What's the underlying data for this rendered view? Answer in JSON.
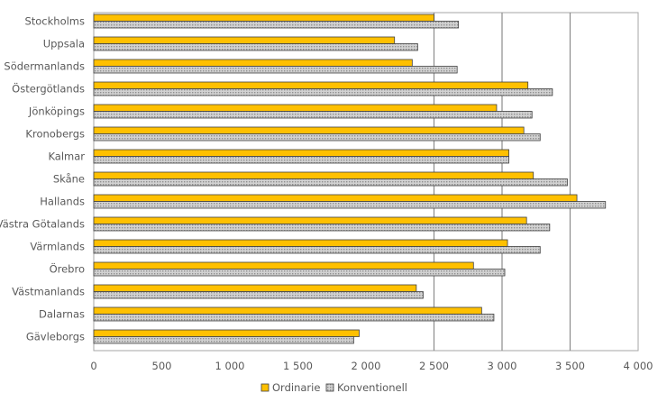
{
  "chart_data": {
    "type": "bar",
    "orientation": "horizontal",
    "categories": [
      "Stockholms",
      "Uppsala",
      "Södermanlands",
      "Östergötlands",
      "Jönköpings",
      "Kronobergs",
      "Kalmar",
      "Skåne",
      "Hallands",
      "Västra Götalands",
      "Värmlands",
      "Örebro",
      "Västmanlands",
      "Dalarnas",
      "Gävleborgs"
    ],
    "series": [
      {
        "name": "Ordinarie",
        "color": "#FFC000",
        "pattern": "solid",
        "values": [
          2500,
          2210,
          2340,
          3190,
          2960,
          3160,
          3050,
          3230,
          3550,
          3180,
          3040,
          2790,
          2370,
          2850,
          1950
        ]
      },
      {
        "name": "Konventionell",
        "color": "#BFBFBF",
        "pattern": "dotted",
        "values": [
          2680,
          2380,
          2670,
          3370,
          3220,
          3280,
          3050,
          3480,
          3760,
          3350,
          3280,
          3020,
          2420,
          2940,
          1910
        ]
      }
    ],
    "xlim": [
      0,
      4000
    ],
    "xticks": [
      0,
      500,
      1000,
      1500,
      2000,
      2500,
      3000,
      3500,
      4000
    ],
    "xtick_labels": [
      "0",
      "500",
      "1 000",
      "1 500",
      "2 000",
      "2 500",
      "3 000",
      "3 500",
      "4 000"
    ],
    "grid": "vertical at 2500, 3000, 3500",
    "legend": "bottom-center"
  }
}
